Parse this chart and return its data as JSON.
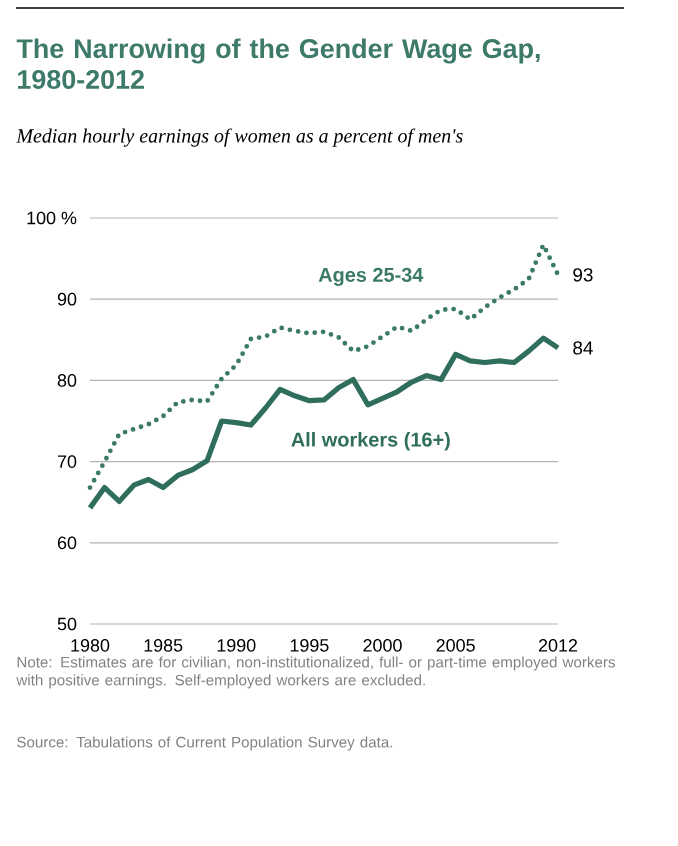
{
  "chart_data": {
    "type": "line",
    "title": "The Narrowing of the Gender Wage Gap, 1980-2012",
    "subtitle": "Median hourly earnings of women as a percent of men's",
    "x": [
      1980,
      1981,
      1982,
      1983,
      1984,
      1985,
      1986,
      1987,
      1988,
      1989,
      1990,
      1991,
      1992,
      1993,
      1994,
      1995,
      1996,
      1997,
      1998,
      1999,
      2000,
      2001,
      2002,
      2003,
      2004,
      2005,
      2006,
      2007,
      2008,
      2009,
      2010,
      2011,
      2012
    ],
    "series": [
      {
        "name": "Ages 25-34",
        "color": "#3a7a66",
        "line_style": "dotted",
        "values": [
          66.8,
          70.0,
          73.4,
          74.0,
          74.6,
          75.6,
          77.3,
          77.6,
          77.4,
          80.2,
          81.9,
          85.1,
          85.4,
          86.5,
          86.1,
          85.8,
          86.0,
          85.3,
          83.6,
          84.2,
          85.4,
          86.6,
          86.1,
          87.5,
          88.7,
          88.8,
          87.5,
          89.0,
          90.2,
          91.2,
          92.5,
          96.7,
          93
        ],
        "value_labels": [
          null,
          null,
          null,
          null,
          null,
          null,
          null,
          null,
          null,
          null,
          null,
          null,
          null,
          null,
          null,
          null,
          null,
          null,
          null,
          null,
          null,
          null,
          null,
          null,
          null,
          null,
          null,
          null,
          null,
          null,
          null,
          null,
          "93"
        ]
      },
      {
        "name": "All workers (16+)",
        "color": "#2f6e5c",
        "line_style": "solid",
        "values": [
          64.3,
          66.8,
          65.1,
          67.1,
          67.8,
          66.8,
          68.3,
          69.0,
          70.1,
          75.0,
          74.8,
          74.5,
          76.6,
          78.9,
          78.1,
          77.5,
          77.6,
          79.1,
          80.1,
          77.0,
          77.8,
          78.6,
          79.8,
          80.6,
          80.1,
          83.2,
          82.4,
          82.2,
          82.4,
          82.2,
          83.6,
          85.2,
          84
        ],
        "value_labels": [
          null,
          null,
          null,
          null,
          null,
          null,
          null,
          null,
          null,
          null,
          null,
          null,
          null,
          null,
          null,
          null,
          null,
          null,
          null,
          null,
          null,
          null,
          null,
          null,
          null,
          null,
          null,
          null,
          null,
          null,
          null,
          null,
          "84"
        ]
      }
    ],
    "xlim": [
      1980,
      2012
    ],
    "xticks": [
      1980,
      1985,
      1990,
      1995,
      2000,
      2005,
      2012
    ],
    "ylim": [
      50,
      100
    ],
    "yticks": [
      50,
      60,
      70,
      80,
      90,
      {
        "value": 100,
        "label": "100 %"
      }
    ],
    "grid": "y",
    "annotations": [
      "Note: Estimates are for civilian, non-institutionalized, full- or part-time employed workers with positive earnings. Self-employed workers are excluded.",
      "Source: Tabulations of Current Population Survey data."
    ]
  }
}
